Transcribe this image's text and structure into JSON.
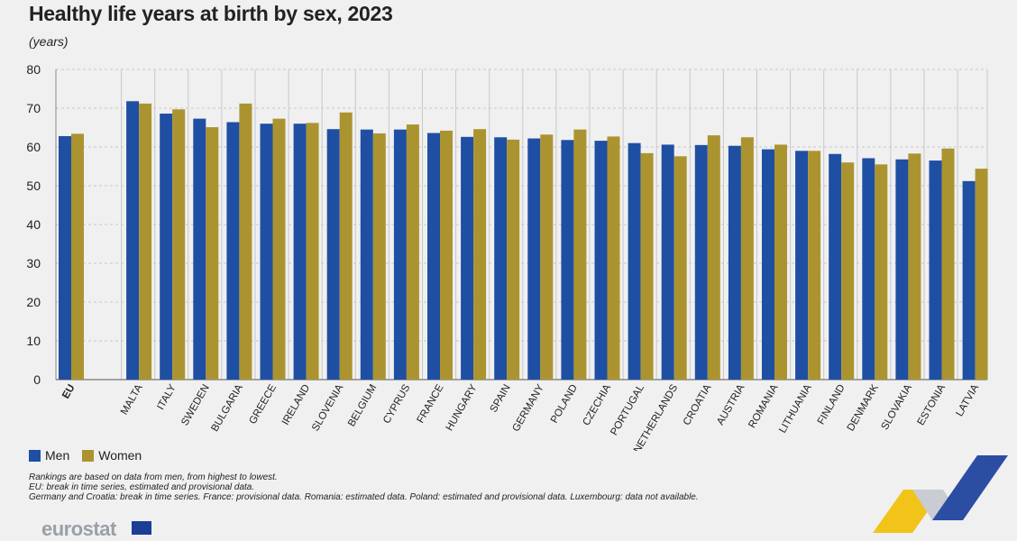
{
  "title": "Healthy life years at birth by sex, 2023",
  "subtitle": "(years)",
  "colors": {
    "men": "#1f4fa3",
    "women": "#ab9430",
    "grid": "#c8c8c8"
  },
  "legend": {
    "men": "Men",
    "women": "Women"
  },
  "notes": [
    "Rankings are based on data from men, from highest to lowest.",
    "EU: break in time series, estimated and provisional data.",
    "Germany and Croatia: break in time series. France: provisional data. Romania: estimated data. Poland: estimated and provisional data. Luxembourg: data not available."
  ],
  "logo_text": "eurostat",
  "chart_data": {
    "type": "bar",
    "title": "Healthy life years at birth by sex, 2023",
    "ylabel": "(years)",
    "ylim": [
      0,
      80
    ],
    "yticks": [
      0,
      10,
      20,
      30,
      40,
      50,
      60,
      70,
      80
    ],
    "grid": true,
    "categories": [
      "EU",
      "MALTA",
      "ITALY",
      "SWEDEN",
      "BULGARIA",
      "GREECE",
      "IRELAND",
      "SLOVENIA",
      "BELGIUM",
      "CYPRUS",
      "FRANCE",
      "HUNGARY",
      "SPAIN",
      "GERMANY",
      "POLAND",
      "CZECHIA",
      "PORTUGAL",
      "NETHERLANDS",
      "CROATIA",
      "AUSTRIA",
      "ROMANIA",
      "LITHUANIA",
      "FINLAND",
      "DENMARK",
      "SLOVAKIA",
      "ESTONIA",
      "LATVIA"
    ],
    "series": [
      {
        "name": "Men",
        "values": [
          62.8,
          71.8,
          68.6,
          67.3,
          66.4,
          66.0,
          66.0,
          64.6,
          64.5,
          64.5,
          63.6,
          62.6,
          62.5,
          62.2,
          61.8,
          61.6,
          61.0,
          60.6,
          60.5,
          60.3,
          59.4,
          59.0,
          58.2,
          57.1,
          56.8,
          56.5,
          51.2
        ]
      },
      {
        "name": "Women",
        "values": [
          63.4,
          71.2,
          69.7,
          65.1,
          71.2,
          67.3,
          66.2,
          68.9,
          63.5,
          65.8,
          64.2,
          64.6,
          61.9,
          63.2,
          64.5,
          62.7,
          58.4,
          57.6,
          63.0,
          62.5,
          60.6,
          59.0,
          56.0,
          55.5,
          58.3,
          59.6,
          54.4
        ]
      }
    ]
  }
}
